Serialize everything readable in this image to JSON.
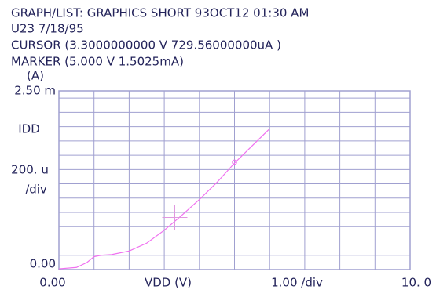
{
  "chart_data": {
    "type": "line",
    "header": [
      "GRAPH/LIST: GRAPHICS SHORT 93OCT12 01:30 AM",
      "U23 7/18/95",
      "CURSOR (3.3000000000 V 729.56000000uA )",
      "MARKER (5.000 V 1.5025mA)"
    ],
    "y_unit": "(A)",
    "ylabel": "IDD",
    "xlabel": "VDD (V)",
    "x_div": {
      "value": 1,
      "label": "1.00 /div"
    },
    "y_div": {
      "value": 0.0002,
      "label": "200. u",
      "suffix": "/div"
    },
    "xlim": [
      0,
      10
    ],
    "ylim": [
      0,
      0.0025
    ],
    "xticks": [
      {
        "value": 0,
        "label": "0.00"
      },
      {
        "value": 10,
        "label": "10. 0"
      }
    ],
    "yticks": [
      {
        "value": 0,
        "label": "0.00"
      },
      {
        "value": 0.0025,
        "label": "2.50 m"
      }
    ],
    "grid": true,
    "grid_color": "#a0a0d0",
    "series": [
      {
        "color": "#f070f0",
        "x": [
          0,
          0.5,
          0.8,
          1.0,
          1.2,
          1.5,
          2.0,
          2.5,
          3.0,
          3.5,
          4.0,
          4.5,
          5.0,
          5.5,
          6.0
        ],
        "values": [
          1e-05,
          3e-05,
          0.0001,
          0.00018,
          0.0002,
          0.00021,
          0.00026,
          0.00037,
          0.00055,
          0.00076,
          0.00098,
          0.00122,
          0.00149,
          0.00173,
          0.00197
        ]
      }
    ],
    "cursor": {
      "x": 3.3,
      "y": 0.00072956,
      "color": "#e098e0"
    },
    "marker": {
      "x": 5.0,
      "y": 0.0015025,
      "color": "#f070f0"
    }
  }
}
